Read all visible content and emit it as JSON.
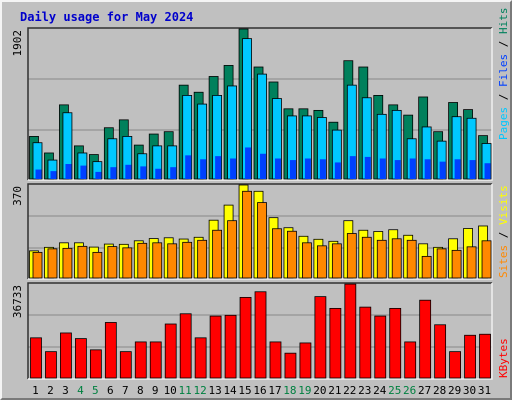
{
  "chart_data": {
    "title": "Daily usage for May 2024",
    "type": "bar",
    "x": [
      "1",
      "2",
      "3",
      "4",
      "5",
      "6",
      "7",
      "8",
      "9",
      "10",
      "11",
      "12",
      "13",
      "14",
      "15",
      "16",
      "17",
      "18",
      "19",
      "20",
      "21",
      "22",
      "23",
      "24",
      "25",
      "26",
      "27",
      "28",
      "29",
      "30",
      "31"
    ],
    "weekend_days": [
      "4",
      "5",
      "11",
      "12",
      "18",
      "19",
      "25",
      "26"
    ],
    "colors": {
      "hits": "#00805c",
      "files": "#00c8ff",
      "pages": "#0040ff",
      "visits": "#ffff00",
      "sites": "#ff8800",
      "kbytes": "#ff0000",
      "weekday_label": "#000000",
      "weekend_label": "#008040",
      "legend_hits": "#00805c",
      "legend_files": "#0040ff",
      "legend_pages": "#00c8ff",
      "legend_visits": "#ffff00",
      "legend_sites": "#ff8800",
      "legend_kbytes": "#ff0000",
      "title": "#0000cc"
    },
    "panels": [
      {
        "id": "requests",
        "axis_max_label": "1902",
        "ylim": [
          0,
          1902
        ],
        "legend": [
          "Pages",
          "Files",
          "Hits"
        ],
        "series": [
          {
            "name": "Hits",
            "values": [
              540,
              330,
              940,
              420,
              310,
              650,
              750,
              430,
              570,
              600,
              1190,
              1100,
              1300,
              1440,
              1902,
              1420,
              1230,
              890,
              890,
              870,
              720,
              1500,
              1420,
              1060,
              940,
              810,
              1040,
              600,
              970,
              880,
              550
            ]
          },
          {
            "name": "Files",
            "values": [
              460,
              240,
              840,
              330,
              220,
              510,
              540,
              320,
              420,
              420,
              1060,
              950,
              1060,
              1180,
              1780,
              1330,
              1020,
              800,
              800,
              780,
              620,
              1190,
              1030,
              820,
              870,
              510,
              660,
              480,
              790,
              770,
              450
            ]
          },
          {
            "name": "Pages",
            "values": [
              120,
              100,
              190,
              170,
              90,
              150,
              180,
              160,
              130,
              150,
              300,
              250,
              290,
              260,
              400,
              320,
              260,
              240,
              260,
              250,
              210,
              290,
              280,
              260,
              240,
              260,
              250,
              220,
              250,
              240,
              200
            ]
          }
        ]
      },
      {
        "id": "visitors",
        "axis_max_label": "370",
        "ylim": [
          0,
          370
        ],
        "legend": [
          "Sites",
          "Visits"
        ],
        "series": [
          {
            "name": "Visits",
            "values": [
              108,
              122,
              140,
              140,
              123,
              135,
              134,
              148,
              157,
              160,
              155,
              162,
              230,
              290,
              370,
              345,
              240,
              200,
              166,
              154,
              146,
              228,
              190,
              185,
              192,
              170,
              136,
              122,
              156,
              197,
              207
            ]
          },
          {
            "name": "Sites",
            "values": [
              102,
              116,
              118,
              126,
              102,
              125,
              120,
              138,
              140,
              136,
              142,
              150,
              190,
              228,
              345,
              300,
              196,
              186,
              140,
              128,
              136,
              177,
              162,
              150,
              156,
              150,
              86,
              116,
              110,
              124,
              148
            ]
          }
        ]
      },
      {
        "id": "volume",
        "axis_max_label": "36733",
        "ylim": [
          0,
          36733
        ],
        "legend": [
          "KBytes"
        ],
        "series": [
          {
            "name": "KBytes",
            "values": [
              15700,
              10300,
              17600,
              15400,
              11000,
              21700,
              10300,
              14100,
              14100,
              21100,
              25100,
              15700,
              24200,
              24500,
              31500,
              33700,
              14100,
              9700,
              13700,
              31800,
              27200,
              36700,
              27700,
              24200,
              27200,
              14100,
              30400,
              20800,
              10300,
              16700,
              17100
            ]
          }
        ]
      }
    ]
  }
}
